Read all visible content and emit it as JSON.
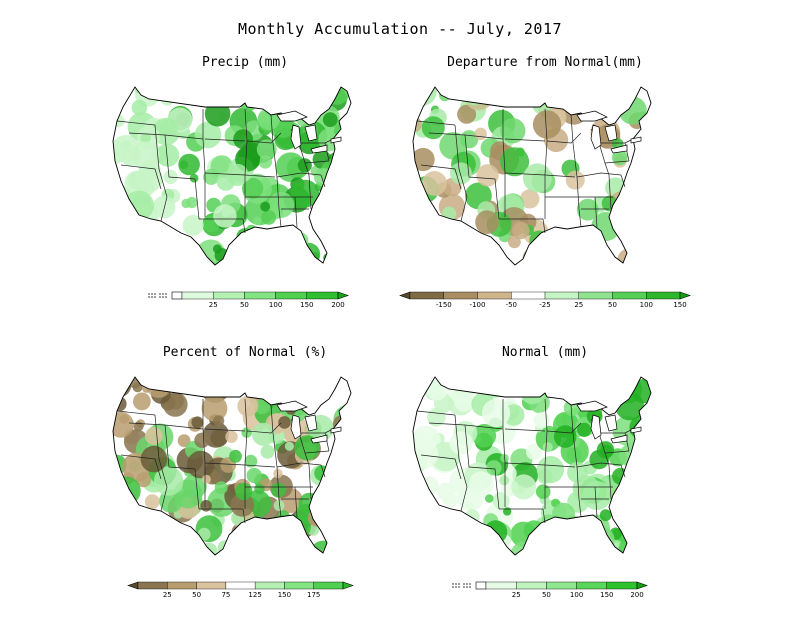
{
  "title": "Monthly Accumulation -- July, 2017",
  "panels": [
    {
      "id": "precip",
      "title": "Precip (mm)",
      "colorbar": {
        "kind": "sequential",
        "has_trace_box": true,
        "colors": [
          "#ffffff",
          "#ddfadd",
          "#b4f2b4",
          "#82e482",
          "#4fd14f",
          "#2fbf2f",
          "#12a812"
        ],
        "labels": [
          "25",
          "50",
          "100",
          "150",
          "200"
        ]
      },
      "palette": [
        "#c8f5c8",
        "#a4eca4",
        "#7ddf7d",
        "#55cf55",
        "#30b930",
        "#1c9c1c"
      ],
      "fill_density": 0.75
    },
    {
      "id": "departure",
      "title": "Departure from Normal(mm)",
      "colorbar": {
        "kind": "diverging",
        "has_trace_box": false,
        "colors": [
          "#5a4a2a",
          "#7e6a45",
          "#a88e62",
          "#cfb58c",
          "#ffffff",
          "#c4f3c4",
          "#8fe38f",
          "#55cf55",
          "#2db72d",
          "#12a012"
        ],
        "labels": [
          "-150",
          "-100",
          "-50",
          "-25",
          "25",
          "50",
          "100",
          "150"
        ]
      },
      "palette": [
        "#c9ad85",
        "#a88e62",
        "#d8c39f",
        "#a8eba8",
        "#70d870",
        "#3cbf3c"
      ],
      "fill_density": 0.45
    },
    {
      "id": "percent",
      "title": "Percent of Normal (%)",
      "colorbar": {
        "kind": "diverging",
        "has_trace_box": false,
        "colors": [
          "#5a4a2a",
          "#8a7550",
          "#b89d70",
          "#d9c29e",
          "#ffffff",
          "#b4f0b4",
          "#82e482",
          "#4fd14f",
          "#2db72d"
        ],
        "labels": [
          "25",
          "50",
          "75",
          "125",
          "150",
          "175"
        ]
      },
      "palette": [
        "#6b5a38",
        "#8a7550",
        "#b89d70",
        "#d9c29e",
        "#a8eba8",
        "#6ad66a",
        "#3cbf3c"
      ],
      "fill_density": 0.85
    },
    {
      "id": "normal",
      "title": "Normal (mm)",
      "colorbar": {
        "kind": "sequential",
        "has_trace_box": true,
        "colors": [
          "#ffffff",
          "#e5fbe5",
          "#bff4bf",
          "#8fe88f",
          "#5ad65a",
          "#2ec22e",
          "#10a010"
        ],
        "labels": [
          "25",
          "50",
          "100",
          "150",
          "200"
        ]
      },
      "palette": [
        "#e8fbe8",
        "#c8f5c8",
        "#a4eca4",
        "#7ddf7d",
        "#4fd14f",
        "#22b022"
      ],
      "fill_density": 0.8
    }
  ]
}
